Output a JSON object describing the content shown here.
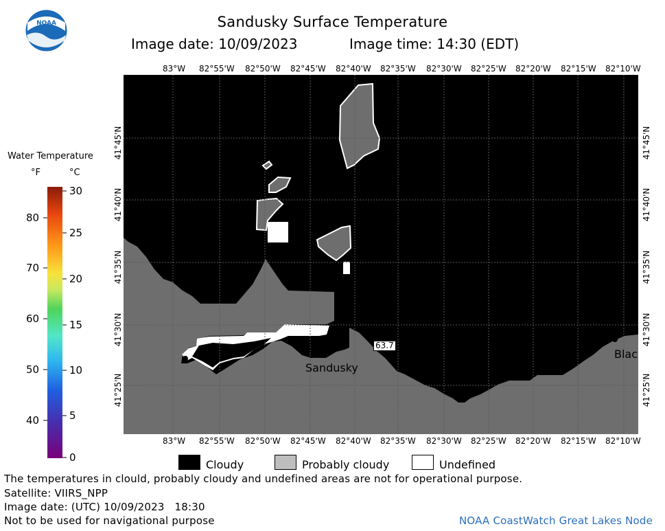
{
  "header": {
    "title": "Sandusky Surface Temperature",
    "image_date": "Image date: 10/09/2023",
    "image_time": "Image time: 14:30 (EDT)"
  },
  "colorbar": {
    "title": "Water Temperature",
    "unit_f": "°F",
    "unit_c": "°C",
    "f_ticks": [
      "80",
      "70",
      "60",
      "50",
      "40"
    ],
    "c_ticks": [
      "30",
      "25",
      "20",
      "15",
      "10",
      "5",
      "0"
    ]
  },
  "map": {
    "lon_labels": [
      "83°W",
      "82°55'W",
      "82°50'W",
      "82°45'W",
      "82°40'W",
      "82°35'W",
      "82°30'W",
      "82°25'W",
      "82°20'W",
      "82°15'W",
      "82°10'W"
    ],
    "lat_labels": [
      "41°45'N",
      "41°40'N",
      "41°35'N",
      "41°30'N",
      "41°25'N"
    ],
    "place_labels": {
      "sandusky": "Sandusky",
      "black": "Blac"
    },
    "station_value": "63.7"
  },
  "legend": {
    "cloudy": "Cloudy",
    "probably_cloudy": "Probably cloudy",
    "undefined": "Undefined",
    "colors": {
      "cloudy": "#000000",
      "probably_cloudy": "#bebebe",
      "undefined": "#ffffff",
      "land": "#6e6e6e"
    }
  },
  "footer": {
    "disclaimer": "The temperatures in clould, probably cloudy and undefined areas are not for operational purpose.",
    "satellite": "Satellite: VIIRS_NPP",
    "utc_date": "Image date: (UTC) 10/09/2023   18:30",
    "nav_warning": "Not to be used for navigational purpose",
    "credit": "NOAA CoastWatch Great Lakes Node"
  }
}
